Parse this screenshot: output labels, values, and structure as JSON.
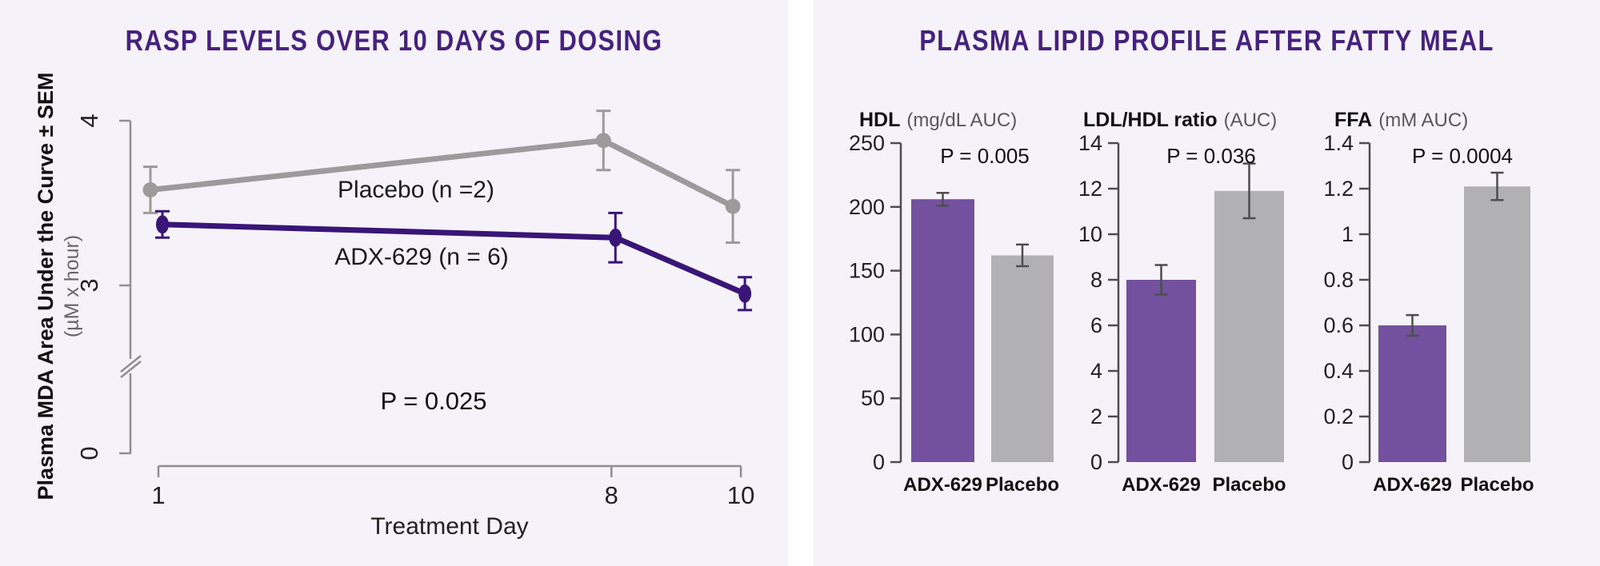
{
  "background": {
    "page": "#ffffff",
    "panel": "#f5f3f9"
  },
  "palette": {
    "title_purple": "#46217e",
    "deep_purple_line": "#3a1578",
    "bar_purple": "#74519f",
    "line_gray": "#9b9b9b",
    "bar_gray": "#b1b1b3",
    "error_gray": "#4d4d4d",
    "axis_gray": "#8f8f8f"
  },
  "left_panel": {
    "title": "RASP LEVELS OVER 10 DAYS OF DOSING"
  },
  "right_panel": {
    "title": "PLASMA LIPID PROFILE AFTER FATTY MEAL"
  },
  "chart_data": [
    {
      "id": "rasp-line-chart",
      "type": "line",
      "title": "RASP LEVELS OVER 10 DAYS OF DOSING",
      "xlabel": "Treatment Day",
      "ylabel_bold": "Plasma MDA Area Under the Curve ± SEM",
      "ylabel_sub": "(µM x hour)",
      "x": [
        1,
        8,
        10
      ],
      "x_ticks": [
        "1",
        "8",
        "10"
      ],
      "y_ticks": [
        {
          "v": 4,
          "label": "4"
        },
        {
          "v": 3,
          "label": "3"
        },
        {
          "v": 0,
          "label": "0"
        }
      ],
      "ylim_shown": [
        0,
        4
      ],
      "axis_break_between": [
        0,
        3
      ],
      "annotation": "P = 0.025",
      "legend_position": "inline-labels",
      "grid": false,
      "series": [
        {
          "name": "Placebo (n =2)",
          "color": "#9b9b9b",
          "marker": "circle",
          "values": [
            3.58,
            3.88,
            3.48
          ],
          "sem": [
            0.14,
            0.18,
            0.22
          ]
        },
        {
          "name": "ADX-629 (n = 6)",
          "color": "#3a1578",
          "marker": "ellipse",
          "values": [
            3.37,
            3.29,
            2.95
          ],
          "sem": [
            0.08,
            0.15,
            0.1
          ]
        }
      ]
    },
    {
      "id": "hdl-bar-chart",
      "type": "bar",
      "title_bold": "HDL",
      "title_unit": "(mg/dL AUC)",
      "p_label": "P = 0.005",
      "categories": [
        "ADX-629",
        "Placebo"
      ],
      "values": [
        206,
        162
      ],
      "errors": [
        5,
        8.5
      ],
      "colors": [
        "#74519f",
        "#b1b1b3"
      ],
      "ylim": [
        0,
        250
      ],
      "ticks": [
        0,
        50,
        100,
        150,
        200,
        250
      ],
      "grid": false
    },
    {
      "id": "ldl-hdl-bar-chart",
      "type": "bar",
      "title_bold": "LDL/HDL ratio",
      "title_unit": "(AUC)",
      "p_label": "P = 0.036",
      "categories": [
        "ADX-629",
        "Placebo"
      ],
      "values": [
        8.0,
        11.9
      ],
      "errors": [
        0.65,
        1.2
      ],
      "colors": [
        "#74519f",
        "#b1b1b3"
      ],
      "ylim": [
        0,
        14
      ],
      "ticks": [
        0,
        2,
        4,
        6,
        8,
        10,
        12,
        14
      ],
      "grid": false
    },
    {
      "id": "ffa-bar-chart",
      "type": "bar",
      "title_bold": "FFA",
      "title_unit": "(mM AUC)",
      "p_label": "P = 0.0004",
      "categories": [
        "ADX-629",
        "Placebo"
      ],
      "values": [
        0.6,
        1.21
      ],
      "errors": [
        0.045,
        0.06
      ],
      "colors": [
        "#74519f",
        "#b1b1b3"
      ],
      "ylim": [
        0,
        1.4
      ],
      "ticks": [
        0,
        0.2,
        0.4,
        0.6,
        0.8,
        1,
        1.2,
        1.4
      ],
      "grid": false
    }
  ]
}
